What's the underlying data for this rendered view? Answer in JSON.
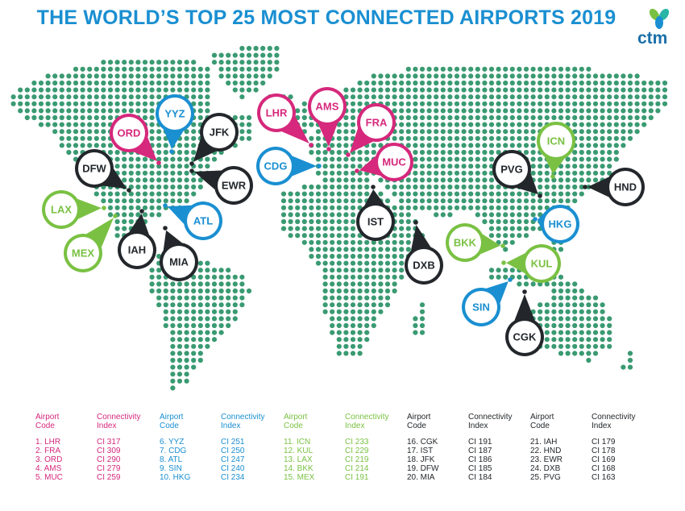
{
  "title": "THE WORLD’S TOP 25 MOST CONNECTED AIRPORTS 2019",
  "logo": {
    "text": "ctm",
    "colors": [
      "#7ac143",
      "#1a8fd1",
      "#2bb5a6"
    ]
  },
  "colors": {
    "pink": "#d6287c",
    "blue": "#1a8fd1",
    "dark": "#23272b",
    "green": "#7ac143",
    "map_dot": "#3a9a72"
  },
  "airports": [
    {
      "code": "LHR",
      "rank": 1,
      "ci": 317,
      "group": "pink"
    },
    {
      "code": "FRA",
      "rank": 2,
      "ci": 309,
      "group": "pink"
    },
    {
      "code": "ORD",
      "rank": 3,
      "ci": 290,
      "group": "pink"
    },
    {
      "code": "AMS",
      "rank": 4,
      "ci": 279,
      "group": "pink"
    },
    {
      "code": "MUC",
      "rank": 5,
      "ci": 259,
      "group": "pink"
    },
    {
      "code": "YYZ",
      "rank": 6,
      "ci": 251,
      "group": "blue"
    },
    {
      "code": "CDG",
      "rank": 7,
      "ci": 250,
      "group": "blue"
    },
    {
      "code": "ATL",
      "rank": 8,
      "ci": 247,
      "group": "blue"
    },
    {
      "code": "SIN",
      "rank": 9,
      "ci": 240,
      "group": "blue"
    },
    {
      "code": "HKG",
      "rank": 10,
      "ci": 234,
      "group": "blue"
    },
    {
      "code": "ICN",
      "rank": 11,
      "ci": 233,
      "group": "green"
    },
    {
      "code": "KUL",
      "rank": 12,
      "ci": 229,
      "group": "green"
    },
    {
      "code": "LAX",
      "rank": 13,
      "ci": 219,
      "group": "green"
    },
    {
      "code": "BKK",
      "rank": 14,
      "ci": 214,
      "group": "green"
    },
    {
      "code": "MEX",
      "rank": 15,
      "ci": 191,
      "group": "green"
    },
    {
      "code": "CGK",
      "rank": 16,
      "ci": 191,
      "group": "dark"
    },
    {
      "code": "IST",
      "rank": 17,
      "ci": 187,
      "group": "dark"
    },
    {
      "code": "JFK",
      "rank": 18,
      "ci": 186,
      "group": "dark"
    },
    {
      "code": "DFW",
      "rank": 19,
      "ci": 185,
      "group": "dark"
    },
    {
      "code": "MIA",
      "rank": 20,
      "ci": 184,
      "group": "dark"
    },
    {
      "code": "IAH",
      "rank": 21,
      "ci": 179,
      "group": "dark"
    },
    {
      "code": "HND",
      "rank": 22,
      "ci": 178,
      "group": "dark"
    },
    {
      "code": "EWR",
      "rank": 23,
      "ci": 169,
      "group": "dark"
    },
    {
      "code": "DXB",
      "rank": 24,
      "ci": 168,
      "group": "dark"
    },
    {
      "code": "PVG",
      "rank": 25,
      "ci": 163,
      "group": "dark"
    }
  ],
  "legend": {
    "airport_header": "Airport\nCode",
    "ci_header": "Connectivity\nIndex",
    "columns": [
      {
        "color": "#d6287c",
        "rows": [
          [
            "1. LHR",
            "CI 317"
          ],
          [
            "2. FRA",
            "CI 309"
          ],
          [
            "3. ORD",
            "CI 290"
          ],
          [
            "4. AMS",
            "CI 279"
          ],
          [
            "5. MUC",
            "CI 259"
          ]
        ]
      },
      {
        "color": "#1a8fd1",
        "rows": [
          [
            "6. YYZ",
            "CI 251"
          ],
          [
            "7. CDG",
            "CI 250"
          ],
          [
            "8. ATL",
            "CI 247"
          ],
          [
            "9. SIN",
            "CI 240"
          ],
          [
            "10. HKG",
            "CI 234"
          ]
        ]
      },
      {
        "color": "#7ac143",
        "rows": [
          [
            "11. ICN",
            "CI 233"
          ],
          [
            "12. KUL",
            "CI 229"
          ],
          [
            "13. LAX",
            "CI 219"
          ],
          [
            "14. BKK",
            "CI 214"
          ],
          [
            "15. MEX",
            "CI 191"
          ]
        ]
      },
      {
        "color": "#23272b",
        "rows": [
          [
            "16. CGK",
            "CI 191"
          ],
          [
            "17. IST",
            "CI 187"
          ],
          [
            "18. JFK",
            "CI 186"
          ],
          [
            "19. DFW",
            "CI 185"
          ],
          [
            "20. MIA",
            "CI 184"
          ]
        ]
      },
      {
        "color": "#23272b",
        "rows": [
          [
            "21. IAH",
            "CI 179"
          ],
          [
            "22. HND",
            "CI 178"
          ],
          [
            "23. EWR",
            "CI 169"
          ],
          [
            "24. DXB",
            "CI 168"
          ],
          [
            "25. PVG",
            "CI 163"
          ]
        ]
      }
    ]
  }
}
